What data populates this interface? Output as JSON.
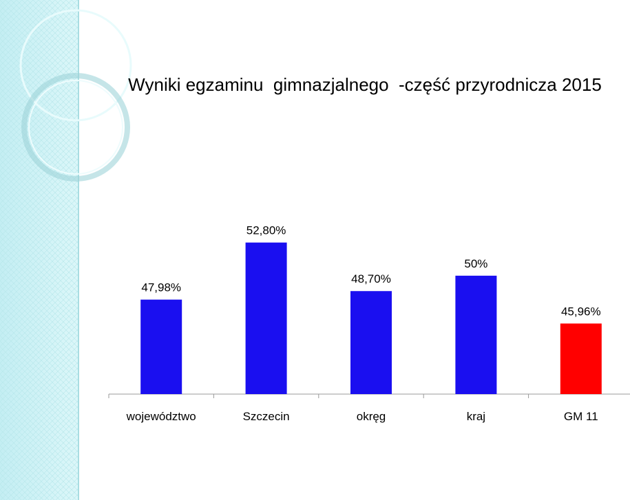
{
  "chart_data": {
    "type": "bar",
    "title": "Wyniki egzaminu  gimnazjalnego  -część przyrodnicza 2015",
    "categories": [
      "województwo",
      "Szczecin",
      "okręg",
      "kraj",
      "GM 11"
    ],
    "values": [
      47.98,
      52.8,
      48.7,
      50,
      45.96
    ],
    "value_labels": [
      "47,98%",
      "52,80%",
      "48,70%",
      "50%",
      "45,96%"
    ],
    "colors": [
      "#1a0ff0",
      "#1a0ff0",
      "#1a0ff0",
      "#1a0ff0",
      "#ff0000"
    ],
    "ylim": [
      40,
      54
    ]
  }
}
